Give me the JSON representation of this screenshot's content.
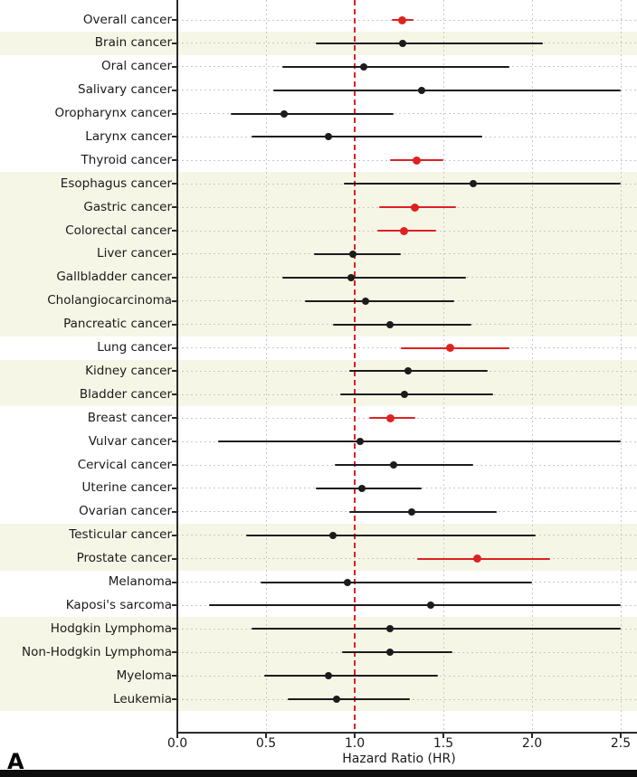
{
  "panel": {
    "letter": "A"
  },
  "chart_data": {
    "type": "forest",
    "title": "",
    "xlabel": "Hazard Ratio (HR)",
    "ylabel": "",
    "xlim": [
      0,
      2.59
    ],
    "x_ticks": [
      "0.0",
      "0.5",
      "1.0",
      "1.5",
      "2.0",
      "2.5"
    ],
    "x_tick_values": [
      0.0,
      0.5,
      1.0,
      1.5,
      2.0,
      2.5
    ],
    "reference_line": 1.0,
    "grid": "dotted",
    "legend_position": "none",
    "colors": {
      "significant": "#dd2222",
      "nonsignificant": "#1c1c1c",
      "band": "#f6f6e7",
      "grid": "#c8c8c8",
      "refline": "#dd2222",
      "text": "#1a1a1a",
      "spine": "#2b2b2b",
      "bottom_bar": "#0d0d0d"
    },
    "rows": [
      {
        "label": "Overall cancer",
        "hr": 1.27,
        "ci_low": 1.21,
        "ci_high": 1.33,
        "significant": true,
        "ci_clipped": false
      },
      {
        "label": "Brain cancer",
        "hr": 1.27,
        "ci_low": 0.78,
        "ci_high": 2.06,
        "significant": false,
        "ci_clipped": false
      },
      {
        "label": "Oral cancer",
        "hr": 1.05,
        "ci_low": 0.59,
        "ci_high": 1.87,
        "significant": false,
        "ci_clipped": false
      },
      {
        "label": "Salivary cancer",
        "hr": 1.38,
        "ci_low": 0.54,
        "ci_high": 2.5,
        "significant": false,
        "ci_clipped": true
      },
      {
        "label": "Oropharynx cancer",
        "hr": 0.6,
        "ci_low": 0.3,
        "ci_high": 1.22,
        "significant": false,
        "ci_clipped": false
      },
      {
        "label": "Larynx cancer",
        "hr": 0.85,
        "ci_low": 0.42,
        "ci_high": 1.72,
        "significant": false,
        "ci_clipped": false
      },
      {
        "label": "Thyroid cancer",
        "hr": 1.35,
        "ci_low": 1.2,
        "ci_high": 1.5,
        "significant": true,
        "ci_clipped": false
      },
      {
        "label": "Esophagus cancer",
        "hr": 1.67,
        "ci_low": 0.94,
        "ci_high": 2.5,
        "significant": false,
        "ci_clipped": true
      },
      {
        "label": "Gastric cancer",
        "hr": 1.34,
        "ci_low": 1.14,
        "ci_high": 1.57,
        "significant": true,
        "ci_clipped": false
      },
      {
        "label": "Colorectal cancer",
        "hr": 1.28,
        "ci_low": 1.13,
        "ci_high": 1.46,
        "significant": true,
        "ci_clipped": false
      },
      {
        "label": "Liver cancer",
        "hr": 0.99,
        "ci_low": 0.77,
        "ci_high": 1.26,
        "significant": false,
        "ci_clipped": false
      },
      {
        "label": "Gallbladder cancer",
        "hr": 0.98,
        "ci_low": 0.59,
        "ci_high": 1.63,
        "significant": false,
        "ci_clipped": false
      },
      {
        "label": "Cholangiocarcinoma",
        "hr": 1.06,
        "ci_low": 0.72,
        "ci_high": 1.56,
        "significant": false,
        "ci_clipped": false
      },
      {
        "label": "Pancreatic cancer",
        "hr": 1.2,
        "ci_low": 0.88,
        "ci_high": 1.66,
        "significant": false,
        "ci_clipped": false
      },
      {
        "label": "Lung cancer",
        "hr": 1.54,
        "ci_low": 1.26,
        "ci_high": 1.87,
        "significant": true,
        "ci_clipped": false
      },
      {
        "label": "Kidney cancer",
        "hr": 1.3,
        "ci_low": 0.97,
        "ci_high": 1.75,
        "significant": false,
        "ci_clipped": false
      },
      {
        "label": "Bladder cancer",
        "hr": 1.28,
        "ci_low": 0.92,
        "ci_high": 1.78,
        "significant": false,
        "ci_clipped": false
      },
      {
        "label": "Breast cancer",
        "hr": 1.2,
        "ci_low": 1.08,
        "ci_high": 1.34,
        "significant": true,
        "ci_clipped": false
      },
      {
        "label": "Vulvar cancer",
        "hr": 1.03,
        "ci_low": 0.23,
        "ci_high": 2.5,
        "significant": false,
        "ci_clipped": true
      },
      {
        "label": "Cervical cancer",
        "hr": 1.22,
        "ci_low": 0.89,
        "ci_high": 1.67,
        "significant": false,
        "ci_clipped": false
      },
      {
        "label": "Uterine cancer",
        "hr": 1.04,
        "ci_low": 0.78,
        "ci_high": 1.38,
        "significant": false,
        "ci_clipped": false
      },
      {
        "label": "Ovarian cancer",
        "hr": 1.32,
        "ci_low": 0.97,
        "ci_high": 1.8,
        "significant": false,
        "ci_clipped": false
      },
      {
        "label": "Testicular cancer",
        "hr": 0.88,
        "ci_low": 0.39,
        "ci_high": 2.02,
        "significant": false,
        "ci_clipped": false
      },
      {
        "label": "Prostate cancer",
        "hr": 1.69,
        "ci_low": 1.35,
        "ci_high": 2.1,
        "significant": true,
        "ci_clipped": false
      },
      {
        "label": "Melanoma",
        "hr": 0.96,
        "ci_low": 0.47,
        "ci_high": 2.0,
        "significant": false,
        "ci_clipped": false
      },
      {
        "label": "Kaposi's sarcoma",
        "hr": 1.43,
        "ci_low": 0.18,
        "ci_high": 2.5,
        "significant": false,
        "ci_clipped": true
      },
      {
        "label": "Hodgkin Lymphoma",
        "hr": 1.2,
        "ci_low": 0.42,
        "ci_high": 2.5,
        "significant": false,
        "ci_clipped": true
      },
      {
        "label": "Non-Hodgkin Lymphoma",
        "hr": 1.2,
        "ci_low": 0.93,
        "ci_high": 1.55,
        "significant": false,
        "ci_clipped": false
      },
      {
        "label": "Myeloma",
        "hr": 0.85,
        "ci_low": 0.49,
        "ci_high": 1.47,
        "significant": false,
        "ci_clipped": false
      },
      {
        "label": "Leukemia",
        "hr": 0.9,
        "ci_low": 0.62,
        "ci_high": 1.31,
        "significant": false,
        "ci_clipped": false
      }
    ],
    "shaded_group_row_ranges": [
      [
        1,
        1
      ],
      [
        7,
        13
      ],
      [
        15,
        16
      ],
      [
        22,
        23
      ],
      [
        26,
        29
      ]
    ]
  }
}
